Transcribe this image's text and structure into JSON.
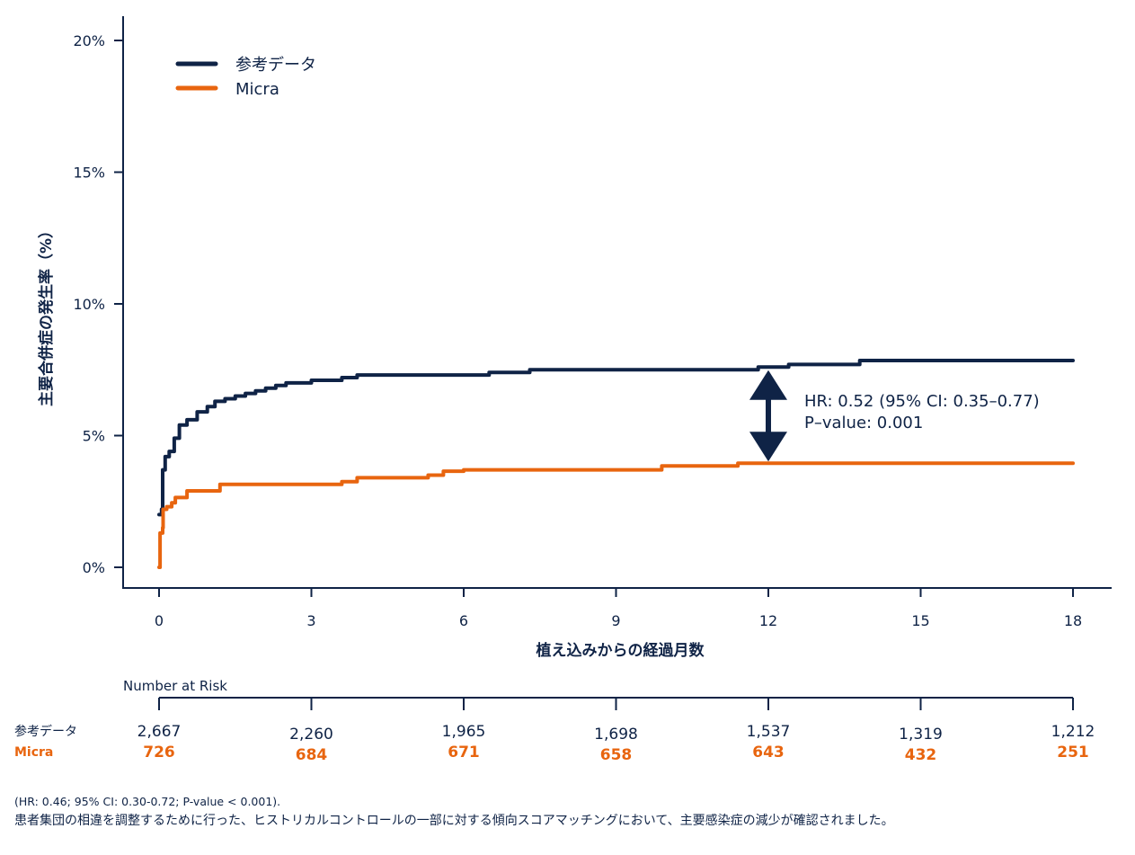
{
  "colors": {
    "reference": "#0f2346",
    "micra": "#e8650f",
    "axis": "#0f2346",
    "background": "#ffffff"
  },
  "chart_data": {
    "type": "line",
    "step": true,
    "title": "",
    "xlabel": "植え込みからの経過月数",
    "ylabel": "主要合併症の発生率（%）",
    "xlim": [
      0,
      18
    ],
    "ylim": [
      0,
      20
    ],
    "x_ticks": [
      0,
      3,
      6,
      9,
      12,
      15,
      18
    ],
    "y_ticks": [
      0,
      5,
      10,
      15,
      20
    ],
    "y_tick_labels": [
      "0%",
      "5%",
      "10%",
      "15%",
      "20%"
    ],
    "grid": false,
    "legend_position": "top-left",
    "series": [
      {
        "name": "参考データ",
        "color_key": "reference",
        "points": [
          [
            0,
            2.0
          ],
          [
            0.05,
            2.2
          ],
          [
            0.07,
            3.7
          ],
          [
            0.12,
            4.2
          ],
          [
            0.2,
            4.4
          ],
          [
            0.3,
            4.9
          ],
          [
            0.4,
            5.4
          ],
          [
            0.55,
            5.6
          ],
          [
            0.75,
            5.9
          ],
          [
            0.95,
            6.1
          ],
          [
            1.1,
            6.3
          ],
          [
            1.3,
            6.4
          ],
          [
            1.5,
            6.5
          ],
          [
            1.7,
            6.6
          ],
          [
            1.9,
            6.7
          ],
          [
            2.1,
            6.8
          ],
          [
            2.3,
            6.9
          ],
          [
            2.5,
            7.0
          ],
          [
            2.8,
            7.0
          ],
          [
            3.0,
            7.1
          ],
          [
            3.3,
            7.1
          ],
          [
            3.6,
            7.2
          ],
          [
            3.9,
            7.3
          ],
          [
            4.8,
            7.3
          ],
          [
            6.5,
            7.4
          ],
          [
            7.0,
            7.4
          ],
          [
            7.3,
            7.5
          ],
          [
            9.0,
            7.5
          ],
          [
            11.3,
            7.5
          ],
          [
            11.8,
            7.6
          ],
          [
            12.4,
            7.7
          ],
          [
            13.5,
            7.7
          ],
          [
            13.8,
            7.85
          ],
          [
            18.0,
            7.85
          ]
        ]
      },
      {
        "name": "Micra",
        "color_key": "micra",
        "points": [
          [
            0,
            0.0
          ],
          [
            0.02,
            1.3
          ],
          [
            0.07,
            1.5
          ],
          [
            0.08,
            2.2
          ],
          [
            0.15,
            2.3
          ],
          [
            0.25,
            2.45
          ],
          [
            0.32,
            2.65
          ],
          [
            0.55,
            2.9
          ],
          [
            1.1,
            2.9
          ],
          [
            1.2,
            3.15
          ],
          [
            3.5,
            3.15
          ],
          [
            3.6,
            3.25
          ],
          [
            3.9,
            3.4
          ],
          [
            5.3,
            3.5
          ],
          [
            5.6,
            3.65
          ],
          [
            6.0,
            3.7
          ],
          [
            9.8,
            3.7
          ],
          [
            9.9,
            3.85
          ],
          [
            11.3,
            3.85
          ],
          [
            11.4,
            3.95
          ],
          [
            18.0,
            3.95
          ]
        ]
      }
    ],
    "annotations": {
      "hr_line1": "HR: 0.52 (95% CI: 0.35–0.77)",
      "hr_line2": "P–value: 0.001",
      "arrow_at_x": 12,
      "arrow_from_y": 7.55,
      "arrow_to_y": 3.95
    },
    "risk_table": {
      "header": "Number at Risk",
      "times": [
        0,
        3,
        6,
        9,
        12,
        15,
        18
      ],
      "rows": [
        {
          "label": "参考データ",
          "color_key": "reference",
          "values": [
            "2,667",
            "2,260",
            "1,965",
            "1,698",
            "1,537",
            "1,319",
            "1,212"
          ]
        },
        {
          "label": "Micra",
          "color_key": "micra",
          "values": [
            "726",
            "684",
            "671",
            "658",
            "643",
            "432",
            "251"
          ]
        }
      ]
    }
  },
  "footnotes": {
    "line1": "(HR: 0.46; 95% CI: 0.30-0.72; P-value < 0.001).",
    "line2": "患者集団の相違を調整するために行った、ヒストリカルコントロールの一部に対する傾向スコアマッチングにおいて、主要感染症の減少が確認されました。"
  }
}
